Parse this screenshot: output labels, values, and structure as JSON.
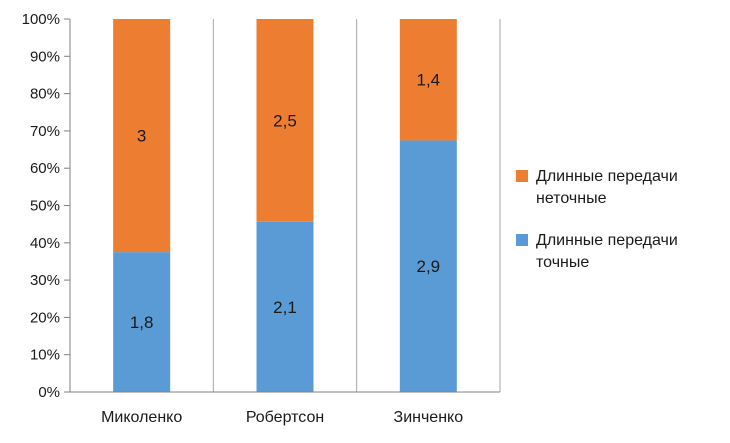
{
  "chart_data": {
    "type": "bar",
    "stacked": "percent",
    "categories": [
      "Миколенко",
      "Робертсон",
      "Зинченко"
    ],
    "series": [
      {
        "name": "Длинные передачи точные",
        "values": [
          1.8,
          2.1,
          2.9
        ],
        "value_labels": [
          "1,8",
          "2,1",
          "2,9"
        ],
        "color": "#5B9BD5"
      },
      {
        "name": "Длинные передачи неточные",
        "values": [
          3,
          2.5,
          1.4
        ],
        "value_labels": [
          "3",
          "2,5",
          "1,4"
        ],
        "color": "#ED7D31"
      }
    ],
    "legend": {
      "position": "right",
      "entries": [
        {
          "series": 1,
          "lines": [
            "Длинные передачи",
            "неточные"
          ]
        },
        {
          "series": 0,
          "lines": [
            "Длинные передачи",
            "точные"
          ]
        }
      ]
    },
    "y_ticks": [
      "0%",
      "10%",
      "20%",
      "30%",
      "40%",
      "50%",
      "60%",
      "70%",
      "80%",
      "90%",
      "100%"
    ],
    "ylim": [
      0,
      100
    ],
    "grid": "vertical",
    "title": "",
    "xlabel": "",
    "ylabel": ""
  }
}
